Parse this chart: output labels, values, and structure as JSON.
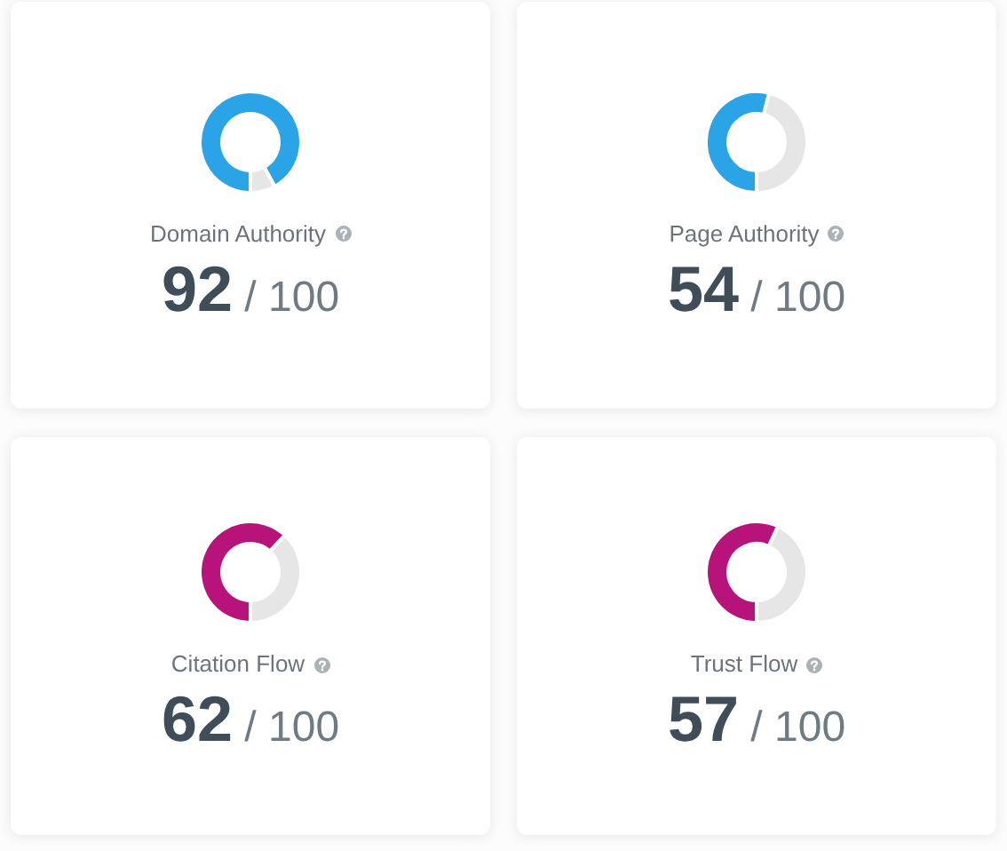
{
  "chart_data": [
    {
      "type": "donut",
      "title": "Domain Authority",
      "categories": [
        null,
        null
      ],
      "values": [
        92,
        8
      ],
      "colors": [
        "#2ba3e7",
        "#e6e6e6"
      ],
      "value_labels": [
        "92 / 100",
        null
      ]
    },
    {
      "type": "donut",
      "title": "Page Authority",
      "categories": [
        null,
        null
      ],
      "values": [
        54,
        46
      ],
      "colors": [
        "#2ba3e7",
        "#e6e6e6"
      ],
      "value_labels": [
        "54 / 100",
        null
      ]
    },
    {
      "type": "donut",
      "title": "Citation Flow",
      "categories": [
        null,
        null
      ],
      "values": [
        62,
        38
      ],
      "colors": [
        "#b7137a",
        "#e6e6e6"
      ],
      "value_labels": [
        "62 / 100",
        null
      ]
    },
    {
      "type": "donut",
      "title": "Trust Flow",
      "categories": [
        null,
        null
      ],
      "values": [
        57,
        43
      ],
      "colors": [
        "#b7137a",
        "#e6e6e6"
      ],
      "value_labels": [
        "57 / 100",
        null
      ]
    }
  ]
}
